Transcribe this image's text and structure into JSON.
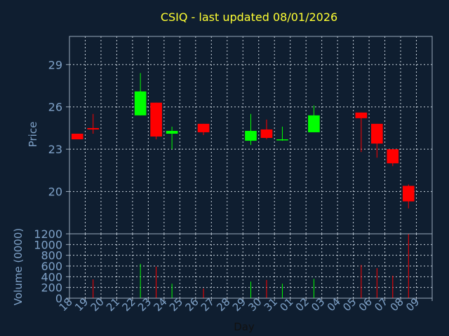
{
  "chart_data": {
    "type": "candlestick",
    "title": "CSIQ - last updated 08/01/2026",
    "xlabel": "Day",
    "price_panel": {
      "ylabel": "Price",
      "yticks": [
        20,
        23,
        26,
        29
      ],
      "ylim": [
        17,
        31
      ]
    },
    "volume_panel": {
      "ylabel": "Volume (0000)",
      "yticks": [
        0,
        200,
        400,
        600,
        800,
        1000,
        1200
      ],
      "ylim": [
        0,
        1200
      ]
    },
    "x_labels": [
      "18",
      "19",
      "20",
      "21",
      "22",
      "23",
      "24",
      "25",
      "26",
      "27",
      "28",
      "29",
      "30",
      "31",
      "01",
      "02",
      "03",
      "04",
      "05",
      "06",
      "07",
      "08",
      "09"
    ],
    "candles": [
      {
        "day": "18",
        "open": 24.1,
        "high": 24.1,
        "low": 23.7,
        "close": 23.7,
        "volume": 0
      },
      {
        "day": "19",
        "open": 24.5,
        "high": 25.5,
        "low": 24.1,
        "close": 24.4,
        "volume": 350
      },
      {
        "day": "22",
        "open": 25.4,
        "high": 28.4,
        "low": 25.4,
        "close": 27.1,
        "volume": 640
      },
      {
        "day": "23",
        "open": 26.3,
        "high": 26.3,
        "low": 23.7,
        "close": 23.9,
        "volume": 590
      },
      {
        "day": "24",
        "open": 24.1,
        "high": 24.6,
        "low": 23.0,
        "close": 24.3,
        "volume": 270
      },
      {
        "day": "26",
        "open": 24.8,
        "high": 24.8,
        "low": 24.0,
        "close": 24.2,
        "volume": 180
      },
      {
        "day": "29",
        "open": 23.6,
        "high": 25.5,
        "low": 23.3,
        "close": 24.3,
        "volume": 310
      },
      {
        "day": "30",
        "open": 24.4,
        "high": 25.1,
        "low": 23.7,
        "close": 23.8,
        "volume": 340
      },
      {
        "day": "31",
        "open": 23.7,
        "high": 24.6,
        "low": 23.6,
        "close": 23.7,
        "volume": 270
      },
      {
        "day": "02",
        "open": 24.2,
        "high": 26.1,
        "low": 24.2,
        "close": 25.4,
        "volume": 360
      },
      {
        "day": "05",
        "open": 25.6,
        "high": 25.6,
        "low": 22.8,
        "close": 25.2,
        "volume": 620
      },
      {
        "day": "06",
        "open": 24.8,
        "high": 24.8,
        "low": 22.4,
        "close": 23.4,
        "volume": 560
      },
      {
        "day": "07",
        "open": 23.0,
        "high": 23.0,
        "low": 21.8,
        "close": 22.0,
        "volume": 420
      },
      {
        "day": "08",
        "open": 20.4,
        "high": 20.5,
        "low": 18.8,
        "close": 19.3,
        "volume": 1200
      }
    ],
    "colors": {
      "background": "#0f1e30",
      "plot_background": "#0f1e30",
      "grid": "#c8d2dc",
      "frame": "#9aaabb",
      "up": "#00ff00",
      "down": "#ff0000",
      "title": "#ffff33",
      "text": "#7fa2c8"
    },
    "grid": true
  }
}
